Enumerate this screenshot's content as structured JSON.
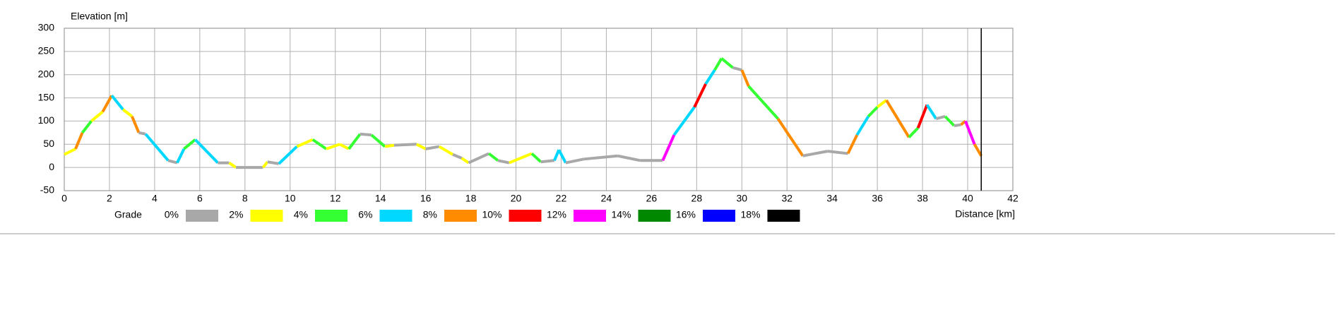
{
  "chart_data": {
    "type": "elevation-profile",
    "y_label": "Elevation [m]",
    "x_label": "Distance [km]",
    "xlim": [
      0,
      42
    ],
    "xticks": [
      0,
      2,
      4,
      6,
      8,
      10,
      12,
      14,
      16,
      18,
      20,
      22,
      24,
      26,
      28,
      30,
      32,
      34,
      36,
      38,
      40,
      42
    ],
    "ylim": [
      -50,
      300
    ],
    "yticks": [
      -50,
      0,
      50,
      100,
      150,
      200,
      250,
      300
    ],
    "grid": true,
    "x": [
      0,
      0.5,
      0.8,
      1.2,
      1.7,
      2.1,
      2.6,
      3.0,
      3.3,
      3.6,
      4.6,
      5.0,
      5.3,
      5.8,
      6.8,
      7.3,
      7.6,
      8.8,
      9.0,
      9.5,
      10.3,
      11.0,
      11.6,
      12.2,
      12.6,
      13.1,
      13.6,
      14.2,
      14.6,
      15.6,
      16.0,
      16.6,
      17.2,
      17.6,
      17.9,
      18.8,
      19.2,
      19.7,
      20.7,
      21.1,
      21.7,
      21.9,
      22.2,
      23.0,
      24.5,
      25.5,
      26.5,
      27.0,
      27.9,
      28.4,
      28.8,
      29.1,
      29.6,
      30.0,
      30.3,
      31.6,
      32.7,
      33.8,
      34.7,
      35.1,
      35.6,
      36.0,
      36.4,
      37.4,
      37.8,
      38.2,
      38.6,
      39.0,
      39.4,
      39.7,
      39.9,
      40.3,
      40.6
    ],
    "y": [
      28,
      40,
      75,
      100,
      120,
      155,
      125,
      110,
      75,
      72,
      15,
      10,
      40,
      60,
      10,
      10,
      0,
      0,
      12,
      8,
      45,
      60,
      40,
      50,
      40,
      72,
      70,
      45,
      48,
      50,
      40,
      45,
      28,
      20,
      10,
      30,
      15,
      10,
      30,
      12,
      15,
      38,
      10,
      18,
      25,
      15,
      15,
      70,
      130,
      180,
      210,
      235,
      215,
      210,
      175,
      105,
      25,
      35,
      30,
      70,
      110,
      130,
      145,
      65,
      85,
      135,
      105,
      110,
      90,
      92,
      100,
      50,
      25
    ],
    "segment_colors": [
      "#ffff00",
      "#ff8c00",
      "#33ff33",
      "#ffff00",
      "#ff8c00",
      "#00d8ff",
      "#ffff00",
      "#ff8c00",
      "#a8a8a8",
      "#00d8ff",
      "#a8a8a8",
      "#00d8ff",
      "#33ff33",
      "#00d8ff",
      "#a8a8a8",
      "#ffff00",
      "#a8a8a8",
      "#ffff00",
      "#a8a8a8",
      "#00d8ff",
      "#ffff00",
      "#33ff33",
      "#ffff00",
      "#ffff00",
      "#33ff33",
      "#a8a8a8",
      "#33ff33",
      "#ffff00",
      "#a8a8a8",
      "#ffff00",
      "#a8a8a8",
      "#ffff00",
      "#a8a8a8",
      "#ffff00",
      "#a8a8a8",
      "#33ff33",
      "#a8a8a8",
      "#ffff00",
      "#33ff33",
      "#a8a8a8",
      "#00d8ff",
      "#00d8ff",
      "#a8a8a8",
      "#a8a8a8",
      "#a8a8a8",
      "#a8a8a8",
      "#ff00ff",
      "#00d8ff",
      "#ff0000",
      "#00d8ff",
      "#33ff33",
      "#33ff33",
      "#a8a8a8",
      "#ff8c00",
      "#33ff33",
      "#ff8c00",
      "#a8a8a8",
      "#a8a8a8",
      "#ff8c00",
      "#00d8ff",
      "#33ff33",
      "#ffff00",
      "#ff8c00",
      "#33ff33",
      "#ff0000",
      "#00d8ff",
      "#a8a8a8",
      "#33ff33",
      "#a8a8a8",
      "#ff8c00",
      "#ff00ff",
      "#ff8c00"
    ],
    "cursor_x": 40.6,
    "legend": {
      "title": "Grade",
      "items": [
        {
          "label": "0%",
          "color": "#a8a8a8"
        },
        {
          "label": "2%",
          "color": "#ffff00"
        },
        {
          "label": "4%",
          "color": "#33ff33"
        },
        {
          "label": "6%",
          "color": "#00d8ff"
        },
        {
          "label": "8%",
          "color": "#ff8c00"
        },
        {
          "label": "10%",
          "color": "#ff0000"
        },
        {
          "label": "12%",
          "color": "#ff00ff"
        },
        {
          "label": "14%",
          "color": "#008800"
        },
        {
          "label": "16%",
          "color": "#0000ff"
        },
        {
          "label": "18%",
          "color": "#000000"
        }
      ]
    }
  }
}
